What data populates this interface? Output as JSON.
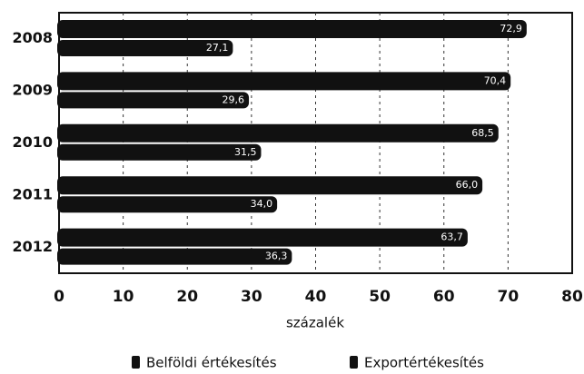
{
  "chart_data": {
    "type": "bar",
    "orientation": "horizontal",
    "categories": [
      "2008",
      "2009",
      "2010",
      "2011",
      "2012"
    ],
    "series": [
      {
        "name": "Belföldi értékesítés",
        "color": "#111111",
        "values": [
          72.9,
          70.4,
          68.5,
          66.0,
          63.7
        ],
        "value_labels": [
          "72,9",
          "70,4",
          "68,5",
          "66,0",
          "63,7"
        ]
      },
      {
        "name": "Exportértékesítés",
        "color": "#111111",
        "values": [
          27.1,
          29.6,
          31.5,
          34.0,
          36.3
        ],
        "value_labels": [
          "27,1",
          "29,6",
          "31,5",
          "34,0",
          "36,3"
        ]
      }
    ],
    "xlabel": "százalék",
    "xlim": [
      0,
      80
    ],
    "xticks": [
      0,
      10,
      20,
      30,
      40,
      50,
      60,
      70,
      80
    ],
    "grid": true
  }
}
